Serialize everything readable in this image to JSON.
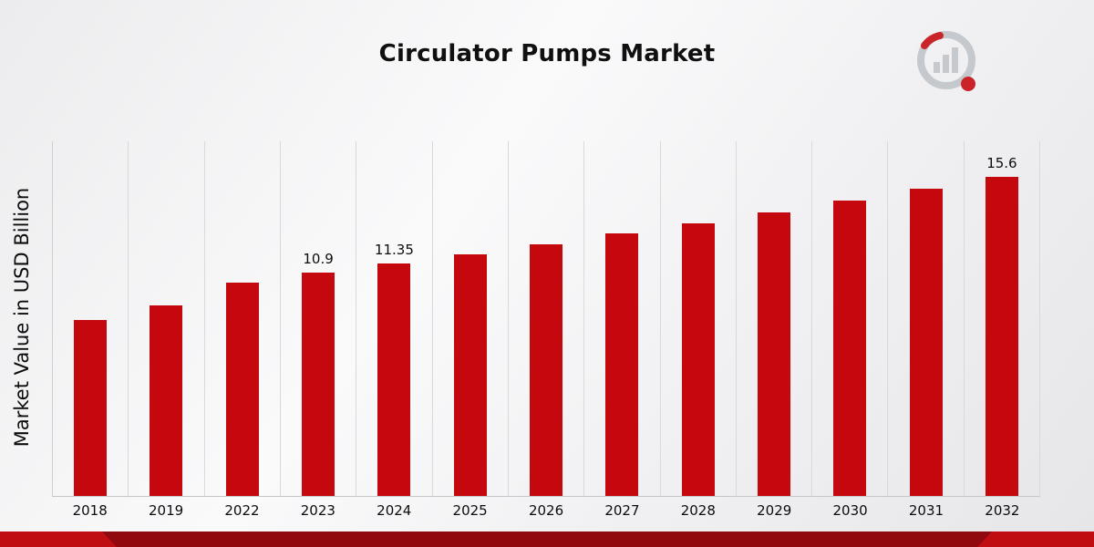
{
  "title": "Circulator Pumps Market",
  "y_axis_label": "Market Value in USD Billion",
  "colors": {
    "bar": "#c5080e",
    "footer": "#bf0d11",
    "footer_dark": "#8f090d",
    "gridline": "#d9d9db",
    "logo_gray": "#c3c6cb",
    "logo_red": "#c8191f"
  },
  "logo": {
    "name": "market-research-future-logo"
  },
  "chart_data": {
    "type": "bar",
    "title": "Circulator Pumps Market",
    "xlabel": "",
    "ylabel": "Market Value in USD Billion",
    "categories": [
      "2018",
      "2019",
      "2022",
      "2023",
      "2024",
      "2025",
      "2026",
      "2027",
      "2028",
      "2029",
      "2030",
      "2031",
      "2032"
    ],
    "values": [
      8.6,
      9.3,
      10.4,
      10.9,
      11.35,
      11.8,
      12.3,
      12.8,
      13.3,
      13.85,
      14.4,
      15.0,
      15.6
    ],
    "data_labels": [
      "",
      "",
      "",
      "10.9",
      "11.35",
      "",
      "",
      "",
      "",
      "",
      "",
      "",
      "15.6"
    ],
    "ylim": [
      0,
      17.36
    ],
    "grid": "vertical",
    "legend": "none"
  }
}
